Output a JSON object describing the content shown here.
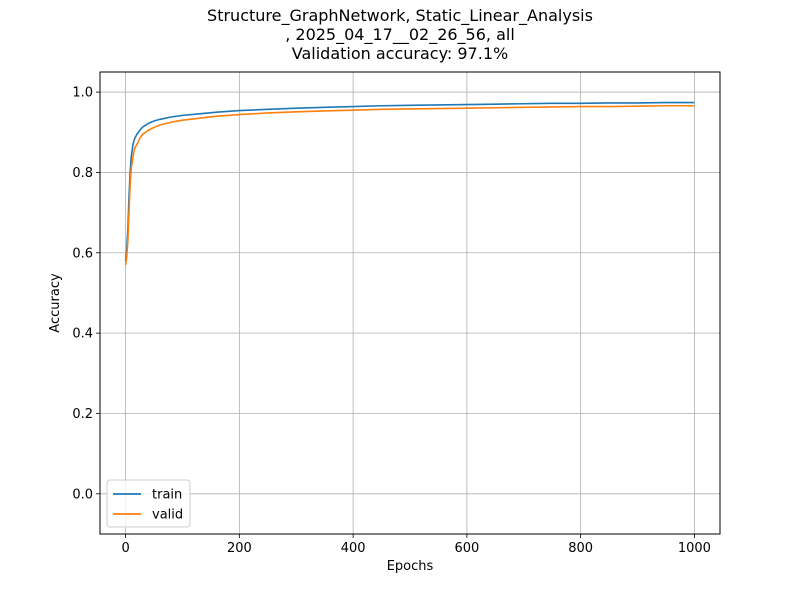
{
  "chart_data": {
    "type": "line",
    "title_lines": [
      "Structure_GraphNetwork, Static_Linear_Analysis",
      ", 2025_04_17__02_26_56, all",
      "Validation accuracy: 97.1%"
    ],
    "xlabel": "Epochs",
    "ylabel": "Accuracy",
    "xlim": [
      -45,
      1045
    ],
    "ylim": [
      -0.1,
      1.05
    ],
    "xticks": [
      0,
      200,
      400,
      600,
      800,
      1000
    ],
    "yticks": [
      0.0,
      0.2,
      0.4,
      0.6,
      0.8,
      1.0
    ],
    "xtick_labels": [
      "0",
      "200",
      "400",
      "600",
      "800",
      "1000"
    ],
    "ytick_labels": [
      "0.0",
      "0.2",
      "0.4",
      "0.6",
      "0.8",
      "1.0"
    ],
    "grid": true,
    "legend_position": "lower-left",
    "series": [
      {
        "name": "train",
        "color": "#1f77b4",
        "x": [
          0,
          2,
          4,
          6,
          8,
          10,
          13,
          16,
          20,
          25,
          30,
          40,
          50,
          60,
          80,
          100,
          130,
          160,
          200,
          250,
          300,
          350,
          400,
          450,
          500,
          550,
          600,
          650,
          700,
          750,
          800,
          850,
          900,
          950,
          1000
        ],
        "y": [
          0.58,
          0.61,
          0.66,
          0.74,
          0.8,
          0.84,
          0.87,
          0.885,
          0.895,
          0.905,
          0.913,
          0.922,
          0.928,
          0.932,
          0.938,
          0.942,
          0.946,
          0.95,
          0.954,
          0.957,
          0.96,
          0.962,
          0.964,
          0.966,
          0.967,
          0.968,
          0.969,
          0.97,
          0.971,
          0.972,
          0.972,
          0.973,
          0.973,
          0.974,
          0.974
        ]
      },
      {
        "name": "valid",
        "color": "#ff7f0e",
        "x": [
          0,
          2,
          4,
          6,
          8,
          10,
          13,
          16,
          20,
          25,
          30,
          40,
          50,
          60,
          80,
          100,
          130,
          160,
          200,
          250,
          300,
          350,
          400,
          450,
          500,
          550,
          600,
          650,
          700,
          750,
          800,
          850,
          900,
          950,
          1000
        ],
        "y": [
          0.57,
          0.59,
          0.63,
          0.7,
          0.77,
          0.81,
          0.84,
          0.86,
          0.87,
          0.885,
          0.895,
          0.905,
          0.912,
          0.918,
          0.925,
          0.93,
          0.935,
          0.94,
          0.944,
          0.948,
          0.951,
          0.953,
          0.955,
          0.957,
          0.958,
          0.959,
          0.96,
          0.961,
          0.962,
          0.963,
          0.964,
          0.964,
          0.965,
          0.966,
          0.966
        ]
      }
    ]
  }
}
